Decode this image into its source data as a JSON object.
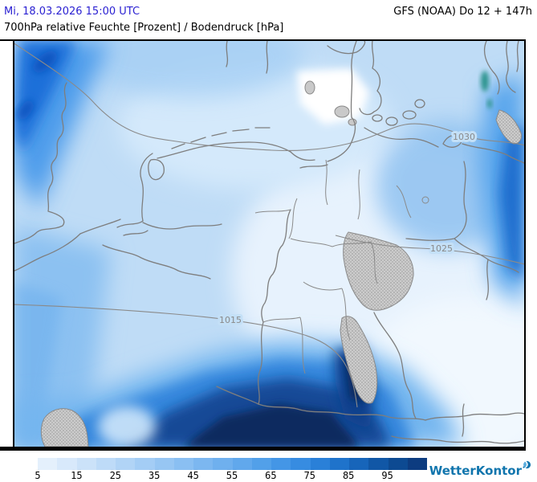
{
  "header": {
    "datetime": "Mi, 18.03.2026 15:00 UTC",
    "model_run": "GFS (NOAA) Do 12 + 147h",
    "title": "700hPa relative Feuchte [Prozent] / Bodendruck [hPa]"
  },
  "map": {
    "isobar_labels": [
      {
        "text": "1030"
      },
      {
        "text": "1025"
      },
      {
        "text": "1015"
      }
    ]
  },
  "legend": {
    "ticks": [
      "5",
      "15",
      "25",
      "35",
      "45",
      "55",
      "65",
      "75",
      "85",
      "95"
    ],
    "tick_spacing_px": 48.4,
    "colors": [
      "#e4f0fc",
      "#d8e9fb",
      "#cbe2f9",
      "#bedbf8",
      "#b1d4f6",
      "#a4cdf5",
      "#97c6f3",
      "#8abff2",
      "#7cb7f0",
      "#6fb0ee",
      "#61a8ec",
      "#52a0e9",
      "#4496e6",
      "#378ce1",
      "#2a80d8",
      "#1f73cb",
      "#1765ba",
      "#1157a6",
      "#0d4a92",
      "#0d3c80"
    ]
  },
  "branding": {
    "name": "WetterKontor"
  },
  "theme": {
    "header_accent": "#2b21d2",
    "map_frame": "#000000",
    "border_line_gray": "#7e7e7e",
    "isobar_label_gray": "#8a8a8a",
    "logo_blue": "#1075ad",
    "stipple_gray": "#cccccc"
  }
}
